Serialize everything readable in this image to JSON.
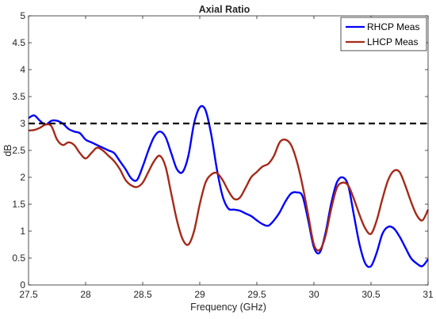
{
  "chart_data": {
    "type": "line",
    "title": "Axial Ratio",
    "xlabel": "Frequency (GHz)",
    "ylabel": "dB",
    "xlim": [
      27.5,
      31
    ],
    "ylim": [
      0,
      5
    ],
    "xticks": [
      "27.5",
      "28",
      "28.5",
      "29",
      "29.5",
      "30",
      "30.5",
      "31"
    ],
    "yticks": [
      "0",
      "0.5",
      "1",
      "1.5",
      "2",
      "2.5",
      "3",
      "3.5",
      "4",
      "4.5",
      "5"
    ],
    "grid": false,
    "legend_position": "top-right",
    "reference_line": {
      "y": 3,
      "style": "dashed",
      "color": "#000000"
    },
    "series": [
      {
        "name": "RHCP Meas",
        "color": "#0000ff",
        "x": [
          27.5,
          27.55,
          27.6,
          27.65,
          27.7,
          27.75,
          27.8,
          27.85,
          27.9,
          27.95,
          28.0,
          28.05,
          28.1,
          28.15,
          28.2,
          28.25,
          28.3,
          28.35,
          28.4,
          28.45,
          28.5,
          28.55,
          28.6,
          28.65,
          28.7,
          28.75,
          28.8,
          28.85,
          28.9,
          28.95,
          29.0,
          29.05,
          29.1,
          29.15,
          29.2,
          29.25,
          29.3,
          29.35,
          29.4,
          29.45,
          29.5,
          29.55,
          29.6,
          29.65,
          29.7,
          29.75,
          29.8,
          29.85,
          29.9,
          29.95,
          30.0,
          30.05,
          30.1,
          30.15,
          30.2,
          30.25,
          30.3,
          30.35,
          30.4,
          30.45,
          30.5,
          30.55,
          30.6,
          30.65,
          30.7,
          30.75,
          30.8,
          30.85,
          30.9,
          30.95,
          31.0
        ],
        "values": [
          3.1,
          3.15,
          3.05,
          2.98,
          3.05,
          3.05,
          3.0,
          2.9,
          2.85,
          2.82,
          2.7,
          2.65,
          2.6,
          2.55,
          2.5,
          2.45,
          2.3,
          2.15,
          1.98,
          1.95,
          2.2,
          2.5,
          2.75,
          2.85,
          2.75,
          2.45,
          2.15,
          2.1,
          2.4,
          3.0,
          3.3,
          3.25,
          2.8,
          2.15,
          1.65,
          1.42,
          1.4,
          1.38,
          1.33,
          1.28,
          1.2,
          1.13,
          1.1,
          1.2,
          1.35,
          1.55,
          1.7,
          1.72,
          1.65,
          1.2,
          0.7,
          0.6,
          0.95,
          1.5,
          1.9,
          2.0,
          1.85,
          1.3,
          0.75,
          0.4,
          0.35,
          0.6,
          0.95,
          1.08,
          1.05,
          0.9,
          0.7,
          0.5,
          0.4,
          0.35,
          0.48
        ]
      },
      {
        "name": "LHCP Meas",
        "color": "#a52a1a",
        "x": [
          27.5,
          27.55,
          27.6,
          27.65,
          27.7,
          27.75,
          27.8,
          27.85,
          27.9,
          27.95,
          28.0,
          28.05,
          28.1,
          28.15,
          28.2,
          28.25,
          28.3,
          28.35,
          28.4,
          28.45,
          28.5,
          28.55,
          28.6,
          28.65,
          28.7,
          28.75,
          28.8,
          28.85,
          28.9,
          28.95,
          29.0,
          29.05,
          29.1,
          29.15,
          29.2,
          29.25,
          29.3,
          29.35,
          29.4,
          29.45,
          29.5,
          29.55,
          29.6,
          29.65,
          29.7,
          29.75,
          29.8,
          29.85,
          29.9,
          29.95,
          30.0,
          30.05,
          30.1,
          30.15,
          30.2,
          30.25,
          30.3,
          30.35,
          30.4,
          30.45,
          30.5,
          30.55,
          30.6,
          30.65,
          30.7,
          30.75,
          30.8,
          30.85,
          30.9,
          30.95,
          31.0
        ],
        "values": [
          2.87,
          2.88,
          2.92,
          2.98,
          2.95,
          2.7,
          2.6,
          2.65,
          2.6,
          2.45,
          2.35,
          2.45,
          2.55,
          2.5,
          2.4,
          2.3,
          2.15,
          1.95,
          1.85,
          1.82,
          1.9,
          2.1,
          2.3,
          2.4,
          2.2,
          1.7,
          1.2,
          0.85,
          0.75,
          1.0,
          1.5,
          1.9,
          2.05,
          2.08,
          1.95,
          1.75,
          1.6,
          1.62,
          1.8,
          2.0,
          2.1,
          2.2,
          2.25,
          2.4,
          2.65,
          2.7,
          2.6,
          2.3,
          1.85,
          1.3,
          0.75,
          0.65,
          0.9,
          1.4,
          1.8,
          1.9,
          1.85,
          1.6,
          1.3,
          1.05,
          0.95,
          1.2,
          1.6,
          1.95,
          2.12,
          2.1,
          1.85,
          1.55,
          1.3,
          1.2,
          1.4
        ]
      }
    ]
  }
}
